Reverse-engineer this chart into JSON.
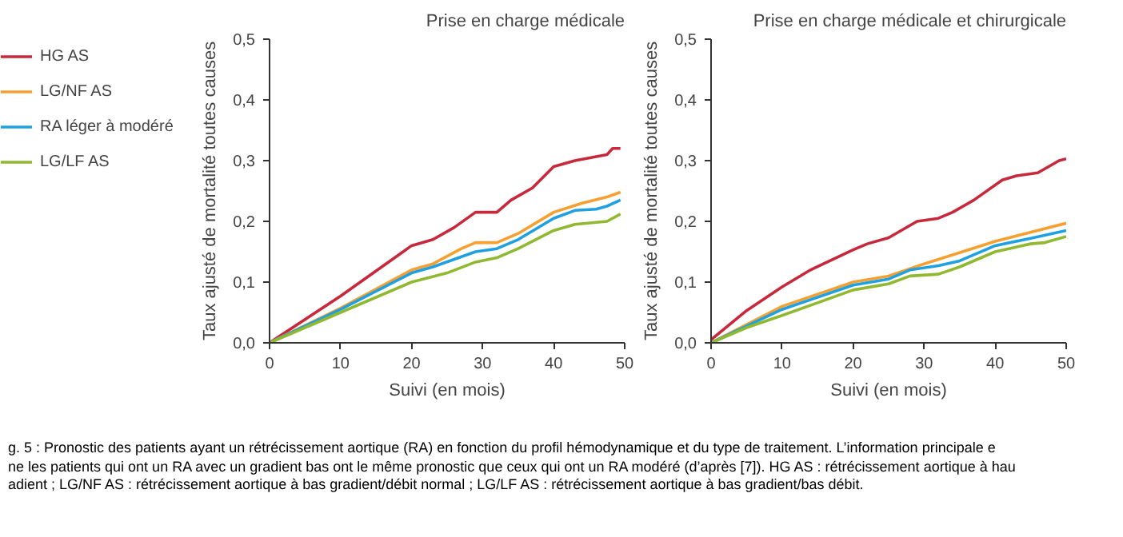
{
  "chart_data": [
    {
      "type": "line",
      "title": "Prise en charge médicale",
      "xlabel": "Suivi (en mois)",
      "ylabel": "Taux ajusté de mortalité toutes causes",
      "xlim": [
        0,
        50
      ],
      "ylim": [
        0,
        0.5
      ],
      "xticks": [
        0,
        10,
        20,
        30,
        40,
        50
      ],
      "yticks": [
        {
          "value": 0,
          "label": "0,0"
        },
        {
          "value": 0.1,
          "label": "0,1"
        },
        {
          "value": 0.2,
          "label": "0,2"
        },
        {
          "value": 0.3,
          "label": "0,3"
        },
        {
          "value": 0.4,
          "label": "0,4"
        },
        {
          "value": 0.5,
          "label": "0,5"
        }
      ],
      "grid": false,
      "legend": "left",
      "line_style": "solid",
      "annotations": [
        "g. 5 : Pronostic des patients ayant un rétrécissement aortique (RA) en fonction du profil hémodynamique et du type de traitement. L’information principale e",
        "ne les patients qui ont un RA avec un gradient bas ont le même pronostic que ceux qui ont un RA modéré (d’après [7]). HG AS : rétrécissement aortique à hau",
        "adient ; LG/NF AS : rétrécissement aortique à bas gradient/débit normal ; LG/LF AS : rétrécissement aortique à bas gradient/bas débit."
      ],
      "series": [
        {
          "name": "HG AS",
          "color": "#c8283c",
          "x": [
            0,
            10,
            20,
            23,
            26,
            29,
            32,
            34,
            37,
            40,
            43,
            47.5,
            48.3,
            49.4
          ],
          "values": [
            0,
            0.077,
            0.16,
            0.17,
            0.19,
            0.215,
            0.215,
            0.235,
            0.255,
            0.29,
            0.3,
            0.31,
            0.32,
            0.32
          ]
        },
        {
          "name": "LG/NF AS",
          "color": "#f5a030",
          "x": [
            0,
            10,
            20,
            23,
            27,
            29,
            32,
            35,
            40,
            44,
            47.5,
            49.4
          ],
          "values": [
            0,
            0.057,
            0.12,
            0.13,
            0.155,
            0.165,
            0.165,
            0.18,
            0.215,
            0.23,
            0.24,
            0.248
          ]
        },
        {
          "name": "RA léger à modéré",
          "color": "#1fa0e0",
          "x": [
            0,
            10,
            20,
            23,
            29,
            32,
            35,
            40,
            43,
            46,
            47.5,
            49.4
          ],
          "values": [
            0,
            0.055,
            0.115,
            0.125,
            0.15,
            0.155,
            0.17,
            0.205,
            0.218,
            0.22,
            0.225,
            0.235
          ]
        },
        {
          "name": "LG/LF AS",
          "color": "#90b830",
          "x": [
            0,
            10,
            20,
            25,
            29,
            32,
            35,
            40,
            43,
            47.5,
            49.4
          ],
          "values": [
            0,
            0.05,
            0.1,
            0.115,
            0.133,
            0.14,
            0.155,
            0.185,
            0.195,
            0.2,
            0.212
          ]
        }
      ]
    },
    {
      "type": "line",
      "title": "Prise en charge médicale et chirurgicale",
      "xlabel": "Suivi (en mois)",
      "ylabel": "Taux ajusté de mortalité toutes causes",
      "xlim": [
        0,
        50
      ],
      "ylim": [
        0,
        0.5
      ],
      "xticks": [
        0,
        10,
        20,
        30,
        40,
        50
      ],
      "yticks": [
        {
          "value": 0,
          "label": "0,0"
        },
        {
          "value": 0.1,
          "label": "0,1"
        },
        {
          "value": 0.2,
          "label": "0,2"
        },
        {
          "value": 0.3,
          "label": "0,3"
        },
        {
          "value": 0.4,
          "label": "0,4"
        },
        {
          "value": 0.5,
          "label": "0,5"
        }
      ],
      "grid": false,
      "line_style": "solid",
      "series": [
        {
          "color": "#c8283c",
          "x": [
            0,
            5,
            10,
            14,
            20,
            22,
            25,
            29,
            32,
            34,
            37,
            41,
            43,
            46,
            49,
            50
          ],
          "values": [
            0.005,
            0.053,
            0.092,
            0.12,
            0.153,
            0.163,
            0.173,
            0.2,
            0.205,
            0.215,
            0.235,
            0.268,
            0.275,
            0.28,
            0.3,
            0.303
          ]
        },
        {
          "color": "#f5a030",
          "x": [
            0,
            10,
            20,
            25,
            30,
            40,
            50
          ],
          "values": [
            0,
            0.06,
            0.1,
            0.11,
            0.13,
            0.167,
            0.197
          ]
        },
        {
          "color": "#1fa0e0",
          "x": [
            0,
            10,
            20,
            25,
            28,
            32,
            35,
            40,
            45,
            50
          ],
          "values": [
            0,
            0.055,
            0.095,
            0.105,
            0.12,
            0.127,
            0.135,
            0.16,
            0.172,
            0.185
          ]
        },
        {
          "color": "#90b830",
          "x": [
            0,
            5,
            10,
            20,
            25,
            28,
            32,
            35,
            40,
            45,
            47,
            50
          ],
          "values": [
            0,
            0.025,
            0.045,
            0.087,
            0.097,
            0.11,
            0.113,
            0.125,
            0.15,
            0.163,
            0.165,
            0.175
          ]
        }
      ]
    }
  ]
}
